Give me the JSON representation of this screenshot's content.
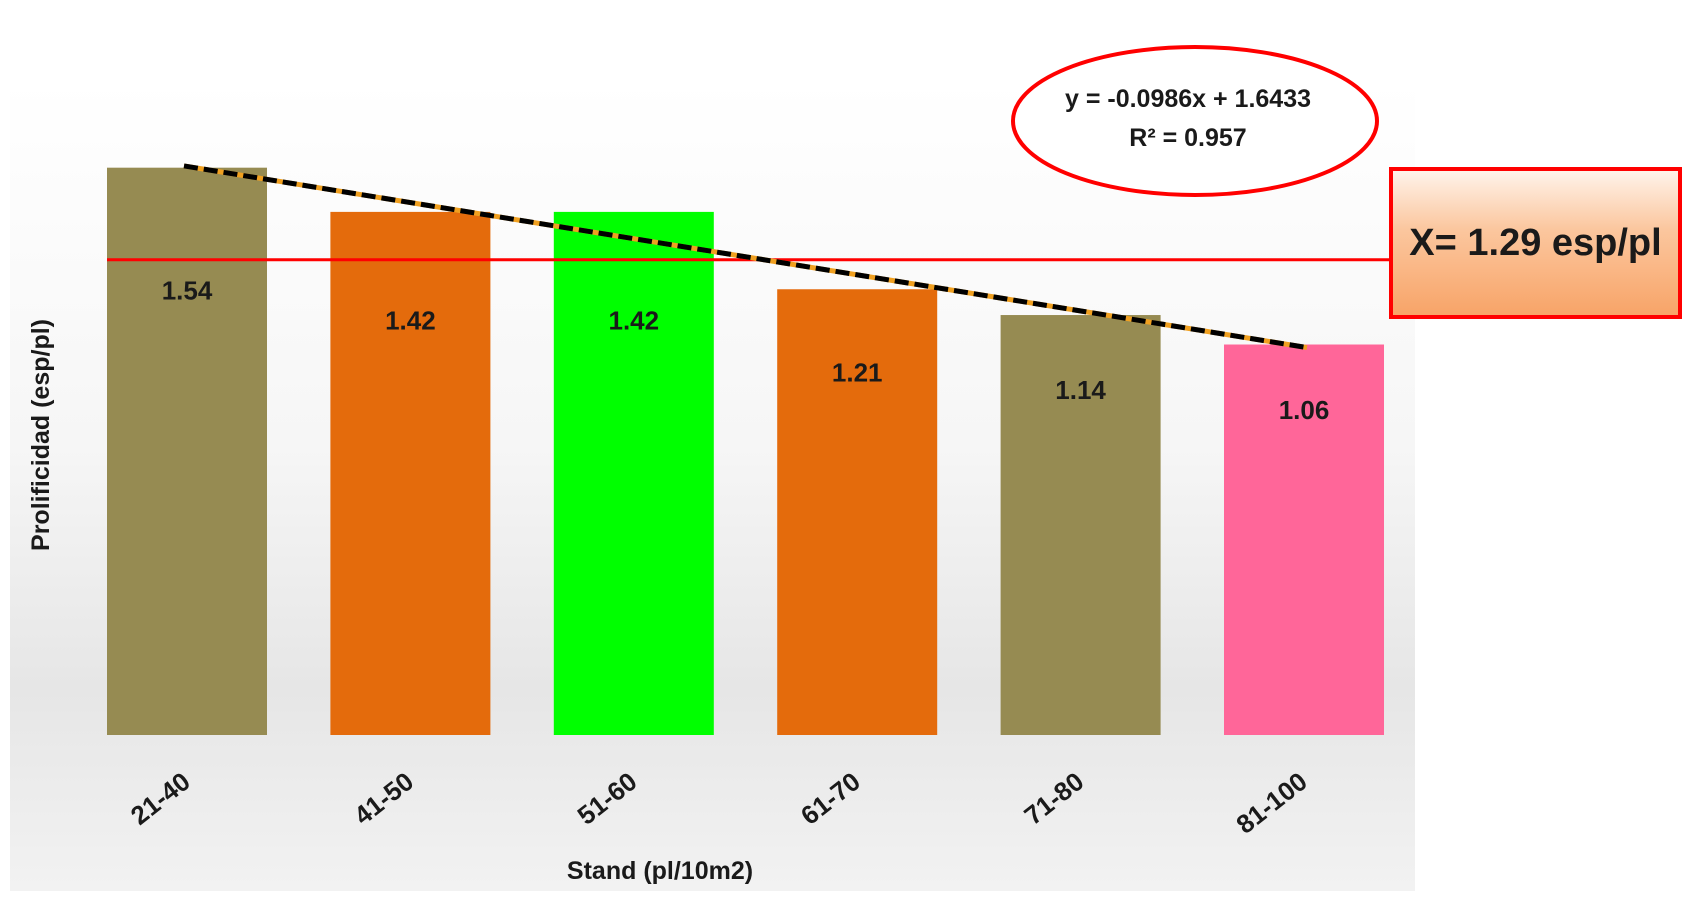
{
  "chart_data": {
    "type": "bar",
    "categories": [
      "21-40",
      "41-50",
      "51-60",
      "61-70",
      "71-80",
      "81-100"
    ],
    "values": [
      1.54,
      1.42,
      1.42,
      1.21,
      1.14,
      1.06
    ],
    "value_labels": [
      "1.54",
      "1.42",
      "1.42",
      "1.21",
      "1.14",
      "1.06"
    ],
    "bar_colors": [
      "#968b52",
      "#e46b0c",
      "#00ff00",
      "#e46b0c",
      "#968b52",
      "#ff6699"
    ],
    "xlabel": "Stand (pl/10m2)",
    "ylabel": "Prolificidad (esp/pl)",
    "ylim": [
      0,
      1.55
    ],
    "grid": false,
    "trendline": {
      "type": "linear",
      "slope": -0.0986,
      "intercept": 1.6433,
      "equation": "y = -0.0986x + 1.6433",
      "r_squared": "R² = 0.957",
      "style": "dashed",
      "color": "#000000",
      "accent_color": "#f0a020"
    },
    "mean_line": {
      "value": 1.29,
      "label": "X= 1.29 esp/pl",
      "color": "#ff0000"
    }
  }
}
